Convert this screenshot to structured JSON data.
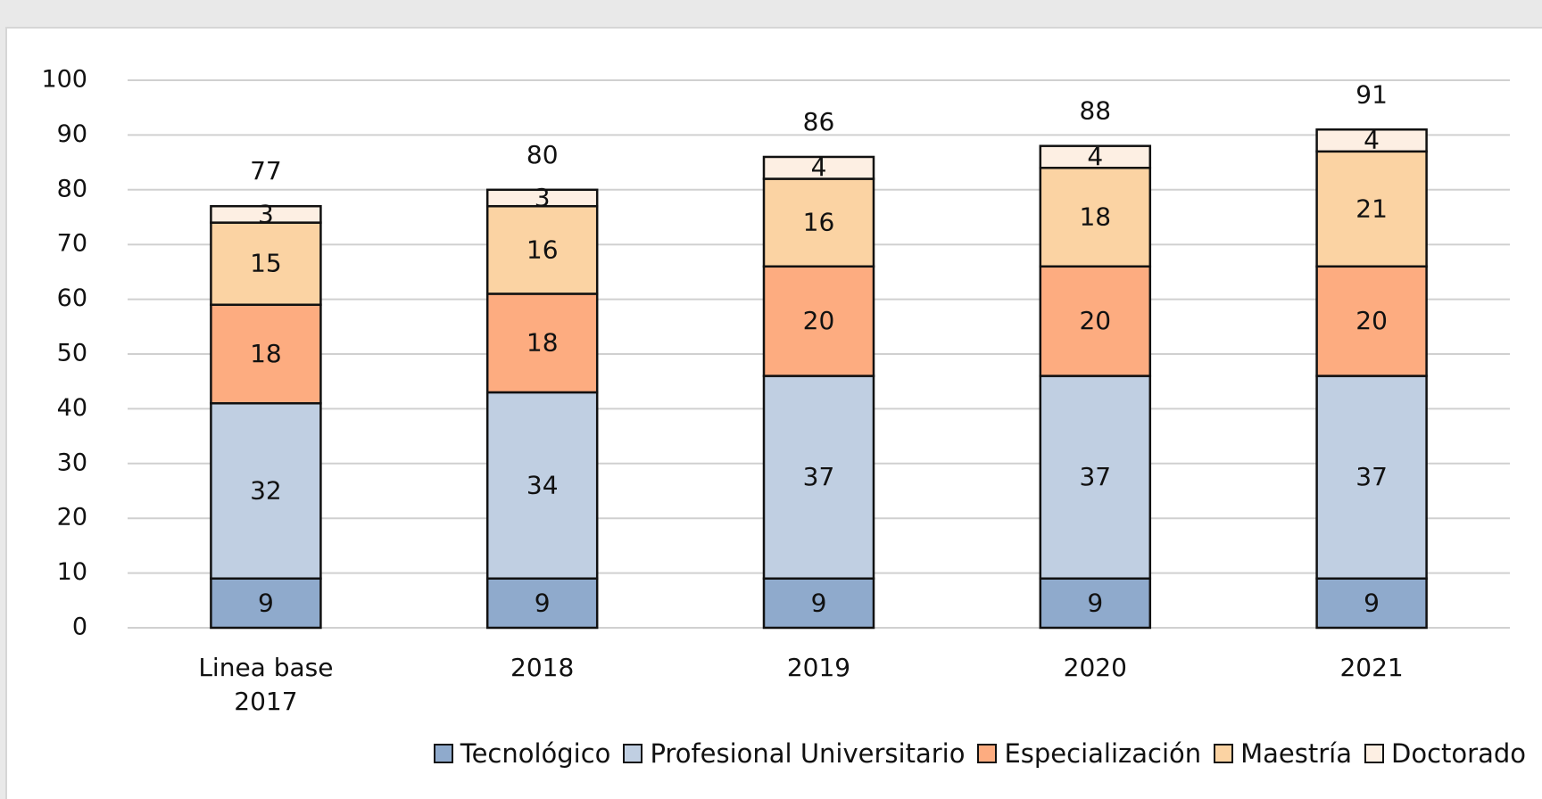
{
  "chart_data": {
    "type": "stacked-bar",
    "categories": [
      "Linea base 2017",
      "2018",
      "2019",
      "2020",
      "2021"
    ],
    "series": [
      {
        "name": "Tecnológico",
        "color": "#8faacc",
        "values": [
          9,
          9,
          9,
          9,
          9
        ]
      },
      {
        "name": "Profesional Universitario",
        "color": "#c0cfe2",
        "values": [
          32,
          34,
          37,
          37,
          37
        ]
      },
      {
        "name": "Especialización",
        "color": "#fdac80",
        "values": [
          18,
          18,
          20,
          20,
          20
        ]
      },
      {
        "name": "Maestría",
        "color": "#fbd3a3",
        "values": [
          15,
          16,
          16,
          18,
          21
        ]
      },
      {
        "name": "Doctorado",
        "color": "#fdefe3",
        "values": [
          3,
          3,
          4,
          4,
          4
        ]
      }
    ],
    "totals": [
      77,
      80,
      86,
      88,
      91
    ],
    "ylim": [
      0,
      100
    ],
    "yticks": [
      0,
      10,
      20,
      30,
      40,
      50,
      60,
      70,
      80,
      90,
      100
    ],
    "grid": true,
    "legend": "bottom"
  }
}
